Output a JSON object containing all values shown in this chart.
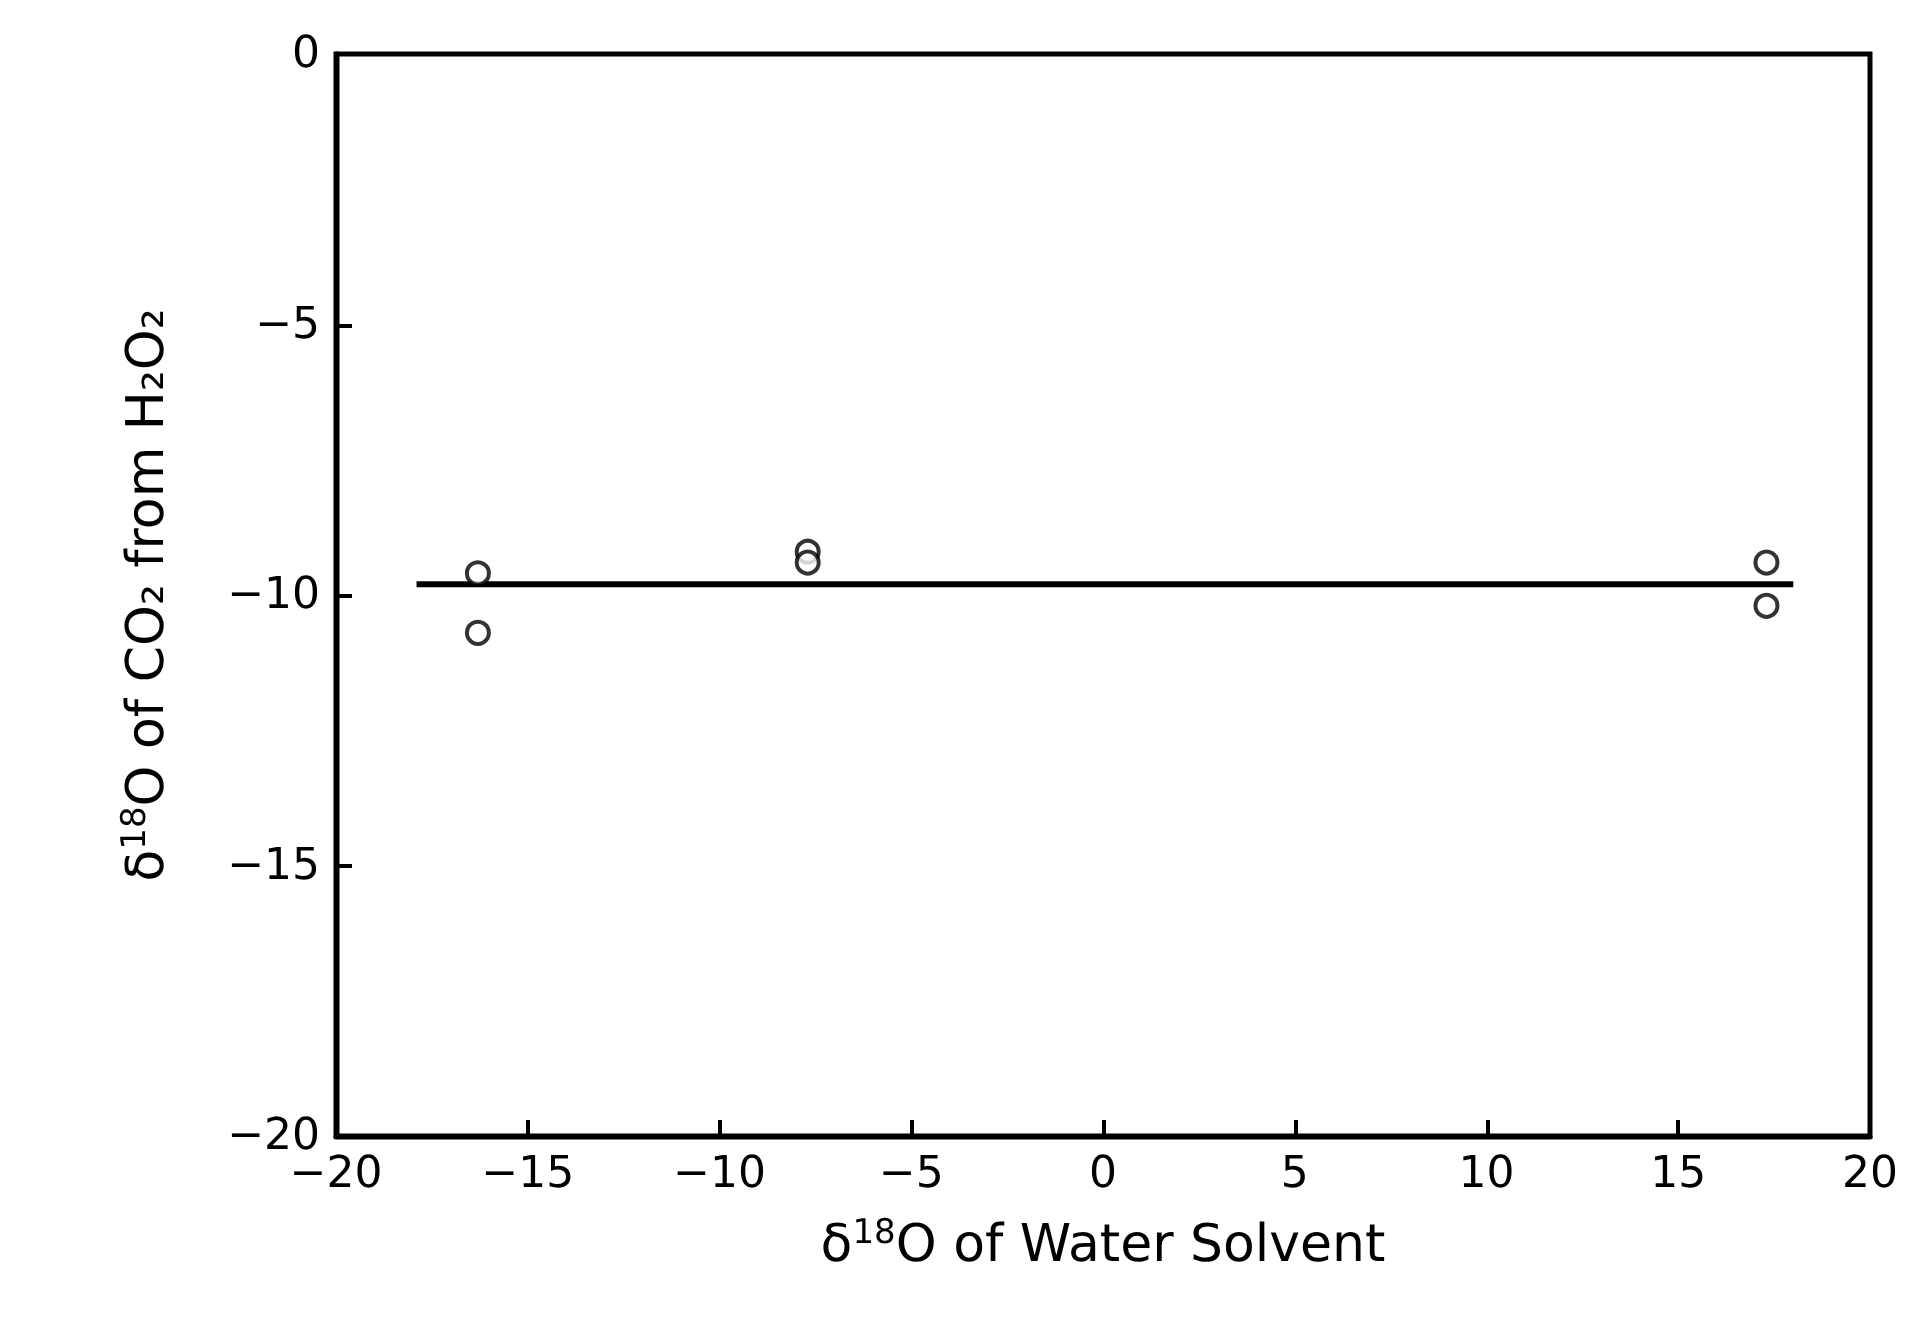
{
  "chart_data": {
    "type": "scatter",
    "xlabel": "δ$^{18}$O of Water Solvent",
    "ylabel": "δ$^{18}$O of CO₂ from H₂O₂",
    "xlim": [
      -20,
      20
    ],
    "ylim": [
      -20,
      0
    ],
    "xticks": [
      -20,
      -15,
      -10,
      -5,
      0,
      5,
      10,
      15,
      20
    ],
    "yticks": [
      -20,
      -15,
      -10,
      -5,
      0
    ],
    "grid": false,
    "series": [
      {
        "marker": "circle",
        "color": "#000000",
        "x": [
          -16.3,
          -16.3,
          -7.7,
          -7.7,
          17.3,
          17.3
        ],
        "values": [
          -9.6,
          -10.7,
          -9.2,
          -9.4,
          -9.4,
          -10.2
        ]
      },
      {
        "type": "line",
        "marker": "none",
        "color": "#000000",
        "x": [
          -17.9,
          18.0
        ],
        "values": [
          -9.8,
          -9.8
        ]
      }
    ]
  }
}
